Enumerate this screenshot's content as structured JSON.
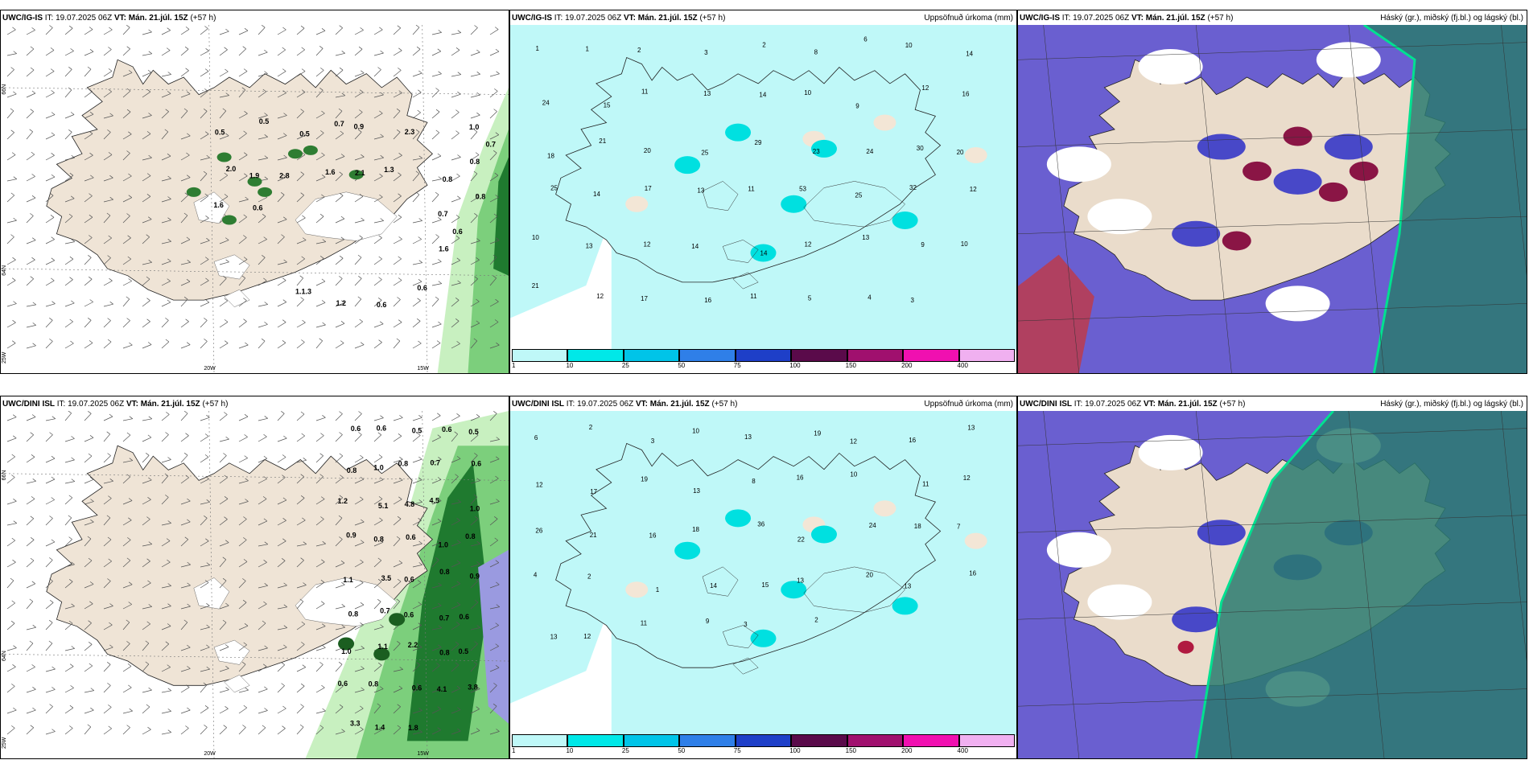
{
  "panels": [
    {
      "id": "p1",
      "model": "UWC/IG-IS",
      "it": "IT: 19.07.2025 06Z",
      "vt_label": "VT:",
      "vt": "Mán. 21.júl. 15Z",
      "lead": "(+57 h)",
      "title_right": ""
    },
    {
      "id": "p2",
      "model": "UWC/IG-IS",
      "it": "IT: 19.07.2025 06Z",
      "vt_label": "VT:",
      "vt": "Mán. 21.júl. 15Z",
      "lead": "(+57 h)",
      "title_right": "Uppsöfnuð úrkoma (mm)"
    },
    {
      "id": "p3",
      "model": "UWC/IG-IS",
      "it": "IT: 19.07.2025 06Z",
      "vt_label": "VT:",
      "vt": "Mán. 21.júl. 15Z",
      "lead": "(+57 h)",
      "title_right": "Háský (gr.), miðský (fj.bl.) og lágský (bl.)"
    },
    {
      "id": "p4",
      "model": "UWC/DINI ISL",
      "it": "IT: 19.07.2025 06Z",
      "vt_label": "VT:",
      "vt": "Mán. 21.júl. 15Z",
      "lead": "(+57 h)",
      "title_right": ""
    },
    {
      "id": "p5",
      "model": "UWC/DINI ISL",
      "it": "IT: 19.07.2025 06Z",
      "vt_label": "VT:",
      "vt": "Mán. 21.júl. 15Z",
      "lead": "(+57 h)",
      "title_right": "Uppsöfnuð úrkoma (mm)"
    },
    {
      "id": "p6",
      "model": "UWC/DINI ISL",
      "it": "IT: 19.07.2025 06Z",
      "vt_label": "VT:",
      "vt": "Mán. 21.júl. 15Z",
      "lead": "(+57 h)",
      "title_right": "Háský (gr.), miðský (fj.bl.) og lágský (bl.)"
    }
  ],
  "axis_labels": {
    "lat66": "66N",
    "lat64": "64N",
    "lon25": "25W",
    "lon20": "20W",
    "lon15": "15W"
  },
  "colorbar": {
    "labels": [
      "1",
      "10",
      "25",
      "50",
      "75",
      "100",
      "150",
      "200",
      "400"
    ],
    "colors": [
      "#bff8f8",
      "#00e8e8",
      "#00c4e8",
      "#2f7fe8",
      "#1e3fc8",
      "#5a0a4a",
      "#a0106e",
      "#f010b0",
      "#f0b0f0"
    ]
  },
  "p1_values": [
    "0.5",
    "0.5",
    "0.5",
    "0.7",
    "0.9",
    "2.3",
    "2.0",
    "1.9",
    "2.8",
    "1.6",
    "2.1",
    "1.3",
    "1.6",
    "0.6",
    "1.0",
    "0.7",
    "0.8",
    "0.8",
    "0.8",
    "0.7",
    "0.6",
    "1.6",
    "1.1.3",
    "1.2",
    "0.6",
    "0.6"
  ],
  "p2_values": [
    "1",
    "1",
    "2",
    "3",
    "2",
    "8",
    "6",
    "10",
    "14",
    "24",
    "15",
    "11",
    "13",
    "14",
    "10",
    "9",
    "12",
    "16",
    "18",
    "21",
    "20",
    "25",
    "29",
    "23",
    "24",
    "30",
    "20",
    "25",
    "14",
    "17",
    "13",
    "11",
    "53",
    "25",
    "32",
    "12",
    "10",
    "13",
    "12",
    "14",
    "14",
    "12",
    "13",
    "9",
    "10",
    "21",
    "12",
    "17",
    "16",
    "11",
    "5",
    "4",
    "3"
  ],
  "p4_values": [
    "0.6",
    "0.6",
    "0.5",
    "0.6",
    "0.5",
    "0.8",
    "1.0",
    "0.8",
    "0.7",
    "0.6",
    "1.2",
    "5.1",
    "4.8",
    "4.5",
    "1.0",
    "0.9",
    "0.8",
    "0.6",
    "1.0",
    "0.8",
    "1.1",
    "3.5",
    "0.6",
    "0.8",
    "0.9",
    "0.8",
    "0.7",
    "0.6",
    "0.7",
    "0.6",
    "1.0",
    "1.1",
    "2.2",
    "0.8",
    "0.5",
    "0.6",
    "0.8",
    "0.6",
    "4.1",
    "3.8",
    "3.3",
    "1.4",
    "1.8"
  ],
  "p5_values": [
    "6",
    "2",
    "3",
    "10",
    "13",
    "19",
    "12",
    "16",
    "13",
    "12",
    "17",
    "19",
    "13",
    "8",
    "16",
    "10",
    "11",
    "12",
    "26",
    "21",
    "16",
    "18",
    "36",
    "22",
    "24",
    "18",
    "7",
    "4",
    "2",
    "1",
    "14",
    "15",
    "13",
    "20",
    "13",
    "16",
    "13",
    "12",
    "11",
    "9",
    "3",
    "2"
  ]
}
